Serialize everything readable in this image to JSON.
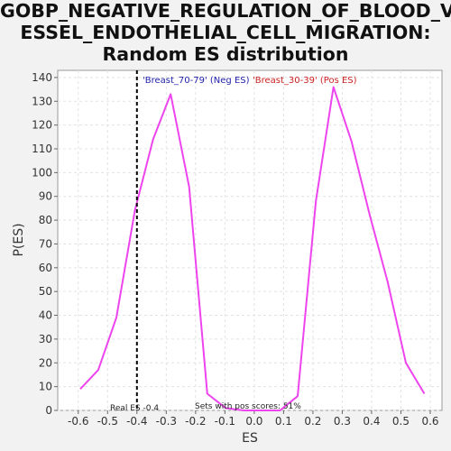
{
  "chart_data": {
    "type": "line",
    "title_lines": [
      "GOBP_NEGATIVE_REGULATION_OF_BLOOD_V",
      "ESSEL_ENDOTHELIAL_CELL_MIGRATION:",
      "Random ES distribution"
    ],
    "xlabel": "ES",
    "ylabel": "P(ES)",
    "xlim": [
      -0.67,
      0.64
    ],
    "ylim": [
      0,
      143
    ],
    "xticks": [
      -0.6,
      -0.5,
      -0.4,
      -0.3,
      -0.2,
      -0.1,
      0.0,
      0.1,
      0.2,
      0.3,
      0.4,
      0.5,
      0.6
    ],
    "xtick_labels": [
      "-0.6",
      "-0.5",
      "-0.4",
      "-0.3",
      "-0.2",
      "-0.1",
      "0.0",
      "0.1",
      "0.2",
      "0.3",
      "0.4",
      "0.5",
      "0.6"
    ],
    "yticks": [
      0,
      10,
      20,
      30,
      40,
      50,
      60,
      70,
      80,
      90,
      100,
      110,
      120,
      130,
      140
    ],
    "ytick_labels": [
      "0",
      "10",
      "20",
      "30",
      "40",
      "50",
      "60",
      "70",
      "80",
      "90",
      "100",
      "110",
      "120",
      "130",
      "140"
    ],
    "grid": true,
    "line_color": "#ee44ee",
    "series": [
      {
        "x": [
          -0.593,
          -0.532,
          -0.47,
          -0.407,
          -0.345,
          -0.285,
          -0.222,
          -0.16,
          -0.097,
          -0.036,
          0.026,
          0.088,
          0.148,
          0.21,
          0.27,
          0.332,
          0.394,
          0.455,
          0.517,
          0.58
        ],
        "y": [
          9,
          17,
          39,
          84,
          114,
          133,
          94,
          7,
          1,
          0,
          0,
          0,
          6,
          88,
          136,
          113,
          82,
          54,
          20,
          7
        ]
      }
    ],
    "real_es_line": {
      "x": -0.4,
      "color": "#000000"
    },
    "legend": {
      "neg_label": "'Breast_70-79' (Neg ES)",
      "neg_color": "#2222aa",
      "pos_label": "'Breast_30-39' (Pos ES)",
      "pos_color": "#cc2222"
    },
    "annotations": {
      "real_es": "Real ES -0.4",
      "pos_scores": "Sets with pos scores: 51%"
    }
  }
}
